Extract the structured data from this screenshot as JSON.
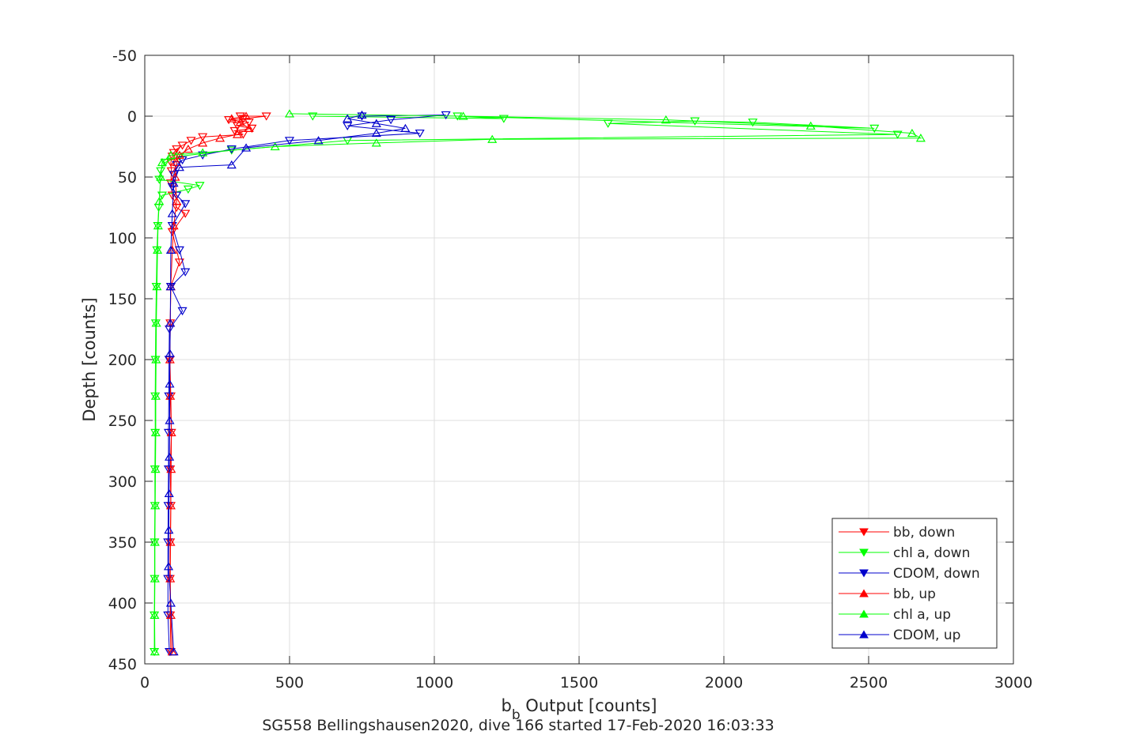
{
  "chart_data": {
    "type": "line",
    "title": "",
    "xlabel": "b_b Output [counts]",
    "xlabel_parts": {
      "main": "b",
      "sub": "b",
      "rest": " Output [counts]"
    },
    "ylabel": "Depth [counts]",
    "caption": "SG558 Bellingshausen2020, dive 166 started 17-Feb-2020 16:03:33",
    "xlim": [
      0,
      3000
    ],
    "ylim": [
      -50,
      450
    ],
    "y_reversed": true,
    "grid": true,
    "xticks": [
      "0",
      "500",
      "1000",
      "1500",
      "2000",
      "2500",
      "3000"
    ],
    "yticks": [
      "-50",
      "0",
      "50",
      "100",
      "150",
      "200",
      "250",
      "300",
      "350",
      "400",
      "450"
    ],
    "legend": {
      "placement": "bottom-right"
    },
    "series": [
      {
        "name": "bb, down",
        "color": "#ff0000",
        "marker": "triangle-down",
        "points": [
          [
            330,
            0
          ],
          [
            420,
            0
          ],
          [
            340,
            2
          ],
          [
            290,
            3
          ],
          [
            360,
            5
          ],
          [
            320,
            8
          ],
          [
            370,
            10
          ],
          [
            310,
            12
          ],
          [
            340,
            15
          ],
          [
            200,
            17
          ],
          [
            160,
            20
          ],
          [
            130,
            24
          ],
          [
            110,
            27
          ],
          [
            100,
            30
          ],
          [
            95,
            33
          ],
          [
            90,
            38
          ],
          [
            92,
            45
          ],
          [
            90,
            55
          ],
          [
            95,
            65
          ],
          [
            110,
            75
          ],
          [
            140,
            80
          ],
          [
            95,
            95
          ],
          [
            120,
            120
          ],
          [
            90,
            140
          ],
          [
            88,
            170
          ],
          [
            87,
            200
          ],
          [
            90,
            230
          ],
          [
            92,
            260
          ],
          [
            88,
            290
          ],
          [
            90,
            320
          ],
          [
            88,
            350
          ],
          [
            87,
            380
          ],
          [
            88,
            410
          ],
          [
            90,
            440
          ]
        ]
      },
      {
        "name": "chl a, down",
        "color": "#00ff00",
        "marker": "triangle-down",
        "points": [
          [
            580,
            0
          ],
          [
            1240,
            2
          ],
          [
            1080,
            0
          ],
          [
            2520,
            10
          ],
          [
            2100,
            5
          ],
          [
            1900,
            4
          ],
          [
            1600,
            6
          ],
          [
            2600,
            15
          ],
          [
            700,
            20
          ],
          [
            300,
            28
          ],
          [
            120,
            33
          ],
          [
            70,
            38
          ],
          [
            55,
            45
          ],
          [
            50,
            52
          ],
          [
            190,
            57
          ],
          [
            150,
            60
          ],
          [
            60,
            65
          ],
          [
            48,
            75
          ],
          [
            45,
            90
          ],
          [
            42,
            110
          ],
          [
            40,
            140
          ],
          [
            38,
            170
          ],
          [
            37,
            200
          ],
          [
            36,
            230
          ],
          [
            36,
            260
          ],
          [
            35,
            290
          ],
          [
            35,
            320
          ],
          [
            34,
            350
          ],
          [
            34,
            380
          ],
          [
            33,
            410
          ],
          [
            33,
            440
          ]
        ]
      },
      {
        "name": "CDOM, down",
        "color": "#0000cc",
        "marker": "triangle-down",
        "points": [
          [
            750,
            0
          ],
          [
            1040,
            -1
          ],
          [
            850,
            3
          ],
          [
            700,
            8
          ],
          [
            950,
            14
          ],
          [
            500,
            20
          ],
          [
            300,
            27
          ],
          [
            200,
            32
          ],
          [
            130,
            36
          ],
          [
            110,
            40
          ],
          [
            100,
            48
          ],
          [
            95,
            58
          ],
          [
            110,
            65
          ],
          [
            140,
            72
          ],
          [
            95,
            90
          ],
          [
            120,
            110
          ],
          [
            140,
            128
          ],
          [
            90,
            140
          ],
          [
            130,
            160
          ],
          [
            85,
            175
          ],
          [
            84,
            200
          ],
          [
            83,
            230
          ],
          [
            82,
            260
          ],
          [
            82,
            290
          ],
          [
            81,
            320
          ],
          [
            80,
            350
          ],
          [
            80,
            380
          ],
          [
            80,
            410
          ],
          [
            85,
            440
          ]
        ]
      },
      {
        "name": "bb, up",
        "color": "#ff0000",
        "marker": "triangle-up",
        "points": [
          [
            95,
            440
          ],
          [
            90,
            410
          ],
          [
            88,
            380
          ],
          [
            89,
            350
          ],
          [
            90,
            320
          ],
          [
            91,
            290
          ],
          [
            92,
            260
          ],
          [
            88,
            230
          ],
          [
            87,
            200
          ],
          [
            88,
            170
          ],
          [
            90,
            140
          ],
          [
            95,
            110
          ],
          [
            100,
            90
          ],
          [
            110,
            70
          ],
          [
            105,
            50
          ],
          [
            110,
            38
          ],
          [
            120,
            32
          ],
          [
            150,
            27
          ],
          [
            200,
            22
          ],
          [
            260,
            18
          ],
          [
            320,
            15
          ],
          [
            360,
            10
          ],
          [
            330,
            5
          ],
          [
            300,
            2
          ],
          [
            350,
            0
          ]
        ]
      },
      {
        "name": "chl a, up",
        "color": "#00ff00",
        "marker": "triangle-up",
        "points": [
          [
            35,
            440
          ],
          [
            34,
            410
          ],
          [
            35,
            380
          ],
          [
            35,
            350
          ],
          [
            36,
            320
          ],
          [
            37,
            290
          ],
          [
            38,
            260
          ],
          [
            38,
            230
          ],
          [
            39,
            200
          ],
          [
            40,
            170
          ],
          [
            42,
            140
          ],
          [
            44,
            110
          ],
          [
            46,
            90
          ],
          [
            50,
            70
          ],
          [
            55,
            50
          ],
          [
            60,
            38
          ],
          [
            90,
            32
          ],
          [
            200,
            30
          ],
          [
            450,
            25
          ],
          [
            800,
            22
          ],
          [
            1200,
            19
          ],
          [
            2680,
            18
          ],
          [
            2650,
            14
          ],
          [
            2300,
            8
          ],
          [
            1800,
            3
          ],
          [
            1100,
            0
          ],
          [
            500,
            -2
          ]
        ]
      },
      {
        "name": "CDOM, up",
        "color": "#0000cc",
        "marker": "triangle-up",
        "points": [
          [
            100,
            440
          ],
          [
            90,
            400
          ],
          [
            82,
            370
          ],
          [
            83,
            340
          ],
          [
            84,
            310
          ],
          [
            85,
            280
          ],
          [
            86,
            250
          ],
          [
            86,
            220
          ],
          [
            87,
            195
          ],
          [
            88,
            170
          ],
          [
            89,
            140
          ],
          [
            90,
            110
          ],
          [
            95,
            80
          ],
          [
            100,
            55
          ],
          [
            120,
            42
          ],
          [
            300,
            40
          ],
          [
            350,
            26
          ],
          [
            600,
            20
          ],
          [
            800,
            14
          ],
          [
            900,
            10
          ],
          [
            800,
            6
          ],
          [
            700,
            2
          ],
          [
            750,
            -1
          ]
        ]
      }
    ]
  }
}
